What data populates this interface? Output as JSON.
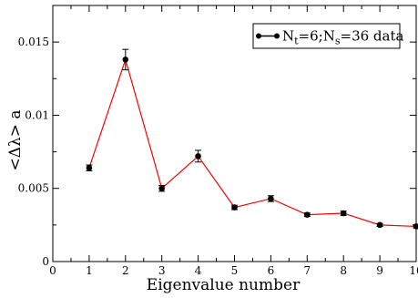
{
  "chart_data": {
    "type": "line",
    "xlabel": "Eigenvalue number",
    "ylabel": "<Δλ> a",
    "xlim": [
      0,
      10
    ],
    "ylim": [
      0,
      0.0175
    ],
    "x_ticks": [
      0,
      1,
      2,
      3,
      4,
      5,
      6,
      7,
      8,
      9,
      10
    ],
    "x_tick_labels": [
      "0",
      "1",
      "2",
      "3",
      "4",
      "5",
      "6",
      "7",
      "8",
      "9",
      "10"
    ],
    "y_ticks": [
      0,
      0.005,
      0.01,
      0.015
    ],
    "y_tick_labels": [
      "0",
      "0.005",
      "0.01",
      "0.015"
    ],
    "grid": false,
    "legend_position": "top-right",
    "series": [
      {
        "name": "N_t=6;N_s=36 data",
        "legend": {
          "prefix": "N",
          "sub1": "t",
          "mid": "=6;N",
          "sub2": "s",
          "suffix": "=36 data"
        },
        "color": "#ff0000",
        "marker_color": "#000000",
        "x": [
          1,
          2,
          3,
          4,
          5,
          6,
          7,
          8,
          9,
          10
        ],
        "y": [
          0.0064,
          0.0138,
          0.005,
          0.0072,
          0.0037,
          0.0043,
          0.0032,
          0.0033,
          0.0025,
          0.0024
        ],
        "yerr": [
          0.0002,
          0.0007,
          0.0002,
          0.0004,
          0.00015,
          0.0002,
          0.00012,
          0.00015,
          0.0001,
          0.0001
        ]
      }
    ]
  }
}
